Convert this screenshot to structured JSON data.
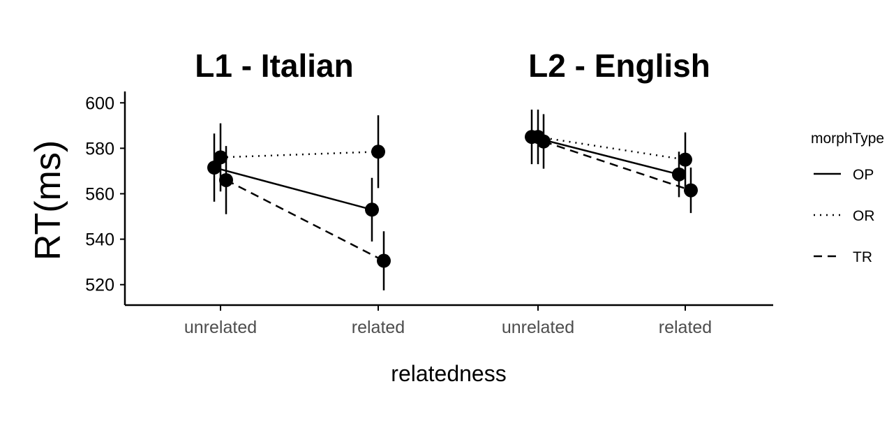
{
  "chart_data": {
    "type": "line",
    "panels": [
      {
        "title": "L1 - Italian",
        "categories": [
          "unrelated",
          "related"
        ],
        "series": [
          {
            "name": "OP",
            "values": [
              571.5,
              553.0
            ],
            "errors": [
              15,
              14
            ]
          },
          {
            "name": "OR",
            "values": [
              576.0,
              578.5
            ],
            "errors": [
              15,
              16
            ]
          },
          {
            "name": "TR",
            "values": [
              566.0,
              530.5
            ],
            "errors": [
              15,
              13
            ]
          }
        ]
      },
      {
        "title": "L2 - English",
        "categories": [
          "unrelated",
          "related"
        ],
        "series": [
          {
            "name": "OP",
            "values": [
              585.0,
              568.5
            ],
            "errors": [
              12,
              10
            ]
          },
          {
            "name": "OR",
            "values": [
              585.0,
              575.0
            ],
            "errors": [
              12,
              12
            ]
          },
          {
            "name": "TR",
            "values": [
              583.0,
              561.5
            ],
            "errors": [
              12,
              10
            ]
          }
        ]
      }
    ],
    "xlabel": "relatedness",
    "ylabel": "RT(ms)",
    "yticks": [
      520,
      540,
      560,
      580,
      600
    ],
    "ylim": [
      511,
      605
    ],
    "legend": {
      "title": "morphType",
      "position": "right",
      "entries": [
        {
          "name": "OP",
          "linetype": "solid"
        },
        {
          "name": "OR",
          "linetype": "dotted"
        },
        {
          "name": "TR",
          "linetype": "dashed"
        }
      ]
    },
    "grid": false
  }
}
